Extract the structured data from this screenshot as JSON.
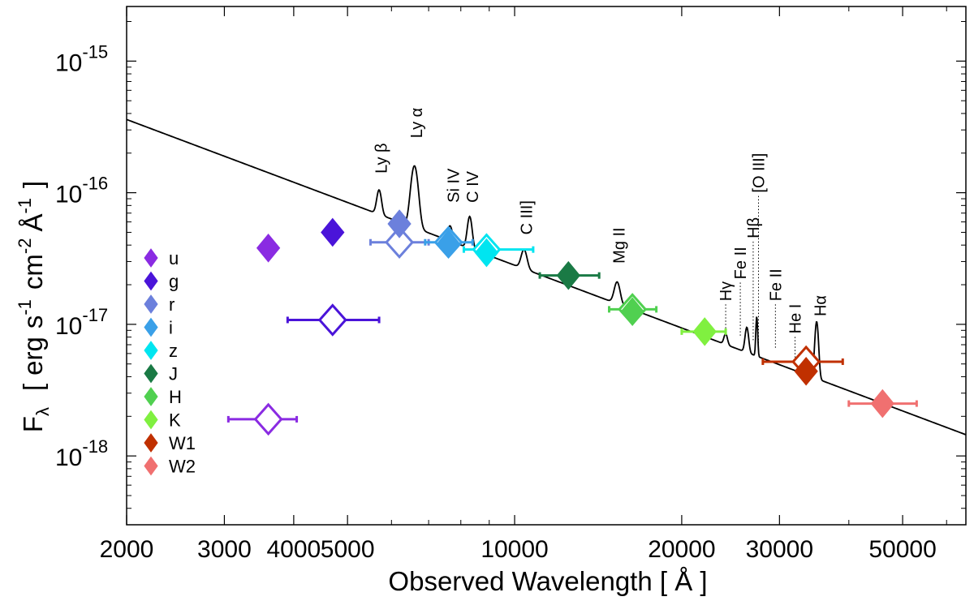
{
  "chart_data": {
    "type": "scatter",
    "xlabel": "Observed Wavelength  [ Å ]",
    "ylabel": "F_λ [ erg s^-1 cm^-2 Å^-1 ]",
    "xscale": "log",
    "yscale": "log",
    "xlim": [
      2000,
      65000
    ],
    "ylim": [
      3e-19,
      2.6e-15
    ],
    "x_ticks": [
      2000,
      3000,
      4000,
      5000,
      10000,
      20000,
      30000,
      50000
    ],
    "x_tick_labels": [
      "2000",
      "3000",
      "4000",
      "5000",
      "10000",
      "20000",
      "30000",
      "50000"
    ],
    "y_ticks": [
      1e-18,
      1e-17,
      1e-16,
      1e-15
    ],
    "y_tick_labels": [
      {
        "base": "10",
        "exp": "-18"
      },
      {
        "base": "10",
        "exp": "-17"
      },
      {
        "base": "10",
        "exp": "-16"
      },
      {
        "base": "10",
        "exp": "-15"
      }
    ],
    "ylabel_parts": {
      "F": "F",
      "sub": "λ",
      "open": "[",
      "erg": "erg",
      "s": "s",
      "e1": "-1",
      "cm": "cm",
      "e2": "-2",
      "ang": "Å",
      "e3": "-1",
      "close": "]"
    },
    "legend_position": "lower-left",
    "grid": false,
    "series": [
      {
        "name": "u",
        "color": "#8a2be2",
        "filled": [
          {
            "x": 3600,
            "y": 3.8e-17
          }
        ],
        "open": [
          {
            "x": 3600,
            "y": 1.9e-18,
            "xerr": [
              3050,
              4050
            ]
          }
        ]
      },
      {
        "name": "g",
        "color": "#4a14d9",
        "filled": [
          {
            "x": 4700,
            "y": 5e-17
          }
        ],
        "open": [
          {
            "x": 4700,
            "y": 1.08e-17,
            "xerr": [
              3900,
              5700
            ]
          }
        ]
      },
      {
        "name": "r",
        "color": "#6c80dc",
        "filled": [
          {
            "x": 6200,
            "y": 5.8e-17
          }
        ],
        "open": [
          {
            "x": 6200,
            "y": 4.2e-17,
            "xerr": [
              5500,
              7000
            ]
          }
        ]
      },
      {
        "name": "i",
        "color": "#3aa0e8",
        "filled": [
          {
            "x": 7600,
            "y": 4.1e-17
          }
        ],
        "open": [
          {
            "x": 7600,
            "y": 4.2e-17,
            "xerr": [
              6900,
              8400
            ]
          }
        ]
      },
      {
        "name": "z",
        "color": "#00e5f0",
        "filled": [
          {
            "x": 8900,
            "y": 3.5e-17
          }
        ],
        "open": [
          {
            "x": 8900,
            "y": 3.7e-17,
            "xerr": [
              8100,
              10800
            ]
          }
        ]
      },
      {
        "name": "J",
        "color": "#1a7a45",
        "filled": [
          {
            "x": 12500,
            "y": 2.35e-17
          }
        ],
        "open": [],
        "xerr_filled": [
          11100,
          14200
        ]
      },
      {
        "name": "H",
        "color": "#50d050",
        "filled": [
          {
            "x": 16300,
            "y": 1.25e-17
          }
        ],
        "open": [
          {
            "x": 16300,
            "y": 1.3e-17,
            "xerr": [
              14800,
              18000
            ]
          }
        ]
      },
      {
        "name": "K",
        "color": "#80f040",
        "filled": [
          {
            "x": 22000,
            "y": 8.8e-18
          }
        ],
        "open": [],
        "xerr_filled": [
          20000,
          24000
        ]
      },
      {
        "name": "W1",
        "color": "#c03000",
        "filled": [
          {
            "x": 33500,
            "y": 4.4e-18
          }
        ],
        "open": [
          {
            "x": 33500,
            "y": 5.2e-18,
            "xerr": [
              28000,
              39000
            ]
          }
        ]
      },
      {
        "name": "W2",
        "color": "#f07070",
        "filled": [
          {
            "x": 46000,
            "y": 2.5e-18
          }
        ],
        "open": [],
        "xerr_filled": [
          40000,
          53000
        ]
      }
    ],
    "emission_lines": [
      {
        "label": "Ly β",
        "x": 5750,
        "y": 1.4e-16,
        "dotted": false
      },
      {
        "label": "Ly α",
        "x": 6650,
        "y": 2.6e-16,
        "dotted": false
      },
      {
        "label": "Si IV",
        "x": 7750,
        "y": 8.4e-17,
        "dotted": false
      },
      {
        "label": "C IV",
        "x": 8400,
        "y": 8.4e-17,
        "dotted": false
      },
      {
        "label": "C III]",
        "x": 10500,
        "y": 4.8e-17,
        "dotted": false
      },
      {
        "label": "Mg II",
        "x": 15400,
        "y": 2.9e-17,
        "dotted": false
      },
      {
        "label": "Hγ",
        "x": 24000,
        "y": 1.5e-17,
        "dotted": true,
        "line_to": 8.5e-18
      },
      {
        "label": "Fe II",
        "x": 25500,
        "y": 2.2e-17,
        "dotted": true,
        "line_to": 8e-18
      },
      {
        "label": "Hβ",
        "x": 26900,
        "y": 4.5e-17,
        "dotted": true,
        "line_to": 7.5e-18
      },
      {
        "label": "[O III]",
        "x": 27500,
        "y": 1e-16,
        "dotted": true,
        "line_to": 7.2e-18
      },
      {
        "label": "Fe II",
        "x": 29500,
        "y": 1.5e-17,
        "dotted": true,
        "line_to": 6.5e-18
      },
      {
        "label": "He I",
        "x": 32000,
        "y": 8.5e-18,
        "dotted": true,
        "line_to": 5.6e-18
      },
      {
        "label": "Hα",
        "x": 35500,
        "y": 1.15e-17,
        "dotted": false
      }
    ],
    "model_spectrum": {
      "continuum": [
        [
          2000,
          3.6e-16
        ],
        [
          65000,
          1.45e-18
        ]
      ],
      "peaks": [
        {
          "x": 5700,
          "height": 1.05e-16,
          "width": 0.004
        },
        {
          "x": 6600,
          "height": 1.6e-16,
          "width": 0.006
        },
        {
          "x": 7650,
          "height": 5.6e-17,
          "width": 0.004
        },
        {
          "x": 8300,
          "height": 6.6e-17,
          "width": 0.004
        },
        {
          "x": 10400,
          "height": 3.7e-17,
          "width": 0.005
        },
        {
          "x": 15300,
          "height": 2.1e-17,
          "width": 0.005
        },
        {
          "x": 24000,
          "height": 8.5e-18,
          "width": 0.003
        },
        {
          "x": 26200,
          "height": 9.5e-18,
          "width": 0.003
        },
        {
          "x": 27300,
          "height": 1.15e-17,
          "width": 0.0015
        },
        {
          "x": 35000,
          "height": 1.05e-17,
          "width": 0.003
        }
      ]
    }
  }
}
